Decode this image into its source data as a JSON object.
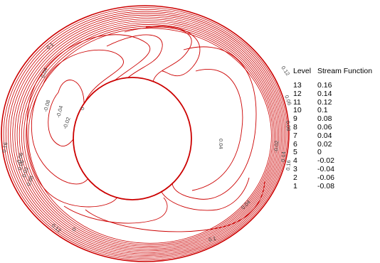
{
  "chart_data": {
    "type": "contour",
    "title": "",
    "field": "Stream Function",
    "legend": {
      "position": "right",
      "header_level": "Level",
      "header_value": "Stream Function",
      "levels": [
        {
          "level": "13",
          "value": "0.16"
        },
        {
          "level": "12",
          "value": "0.14"
        },
        {
          "level": "11",
          "value": "0.12"
        },
        {
          "level": "10",
          "value": "0.1"
        },
        {
          "level": "9",
          "value": "0.08"
        },
        {
          "level": "8",
          "value": "0.06"
        },
        {
          "level": "7",
          "value": "0.04"
        },
        {
          "level": "6",
          "value": "0.02"
        },
        {
          "level": "5",
          "value": "0"
        },
        {
          "level": "4",
          "value": "-0.02"
        },
        {
          "level": "3",
          "value": "-0.04"
        },
        {
          "level": "2",
          "value": "-0.06"
        },
        {
          "level": "1",
          "value": "-0.08"
        }
      ]
    },
    "contour_labels": [
      "0.1",
      "0.04",
      "-0.08",
      "-0.04",
      "-0.02",
      "0",
      "0.04",
      "0.16",
      "-0.06",
      "0.06",
      "0.02",
      "0.08",
      "0.12",
      "0.12",
      "0.06",
      "0.08",
      "-0.02",
      "0.14",
      "0.16",
      "0.04",
      "0.1",
      "0"
    ],
    "grid": false,
    "line_color": "#cc0000"
  }
}
